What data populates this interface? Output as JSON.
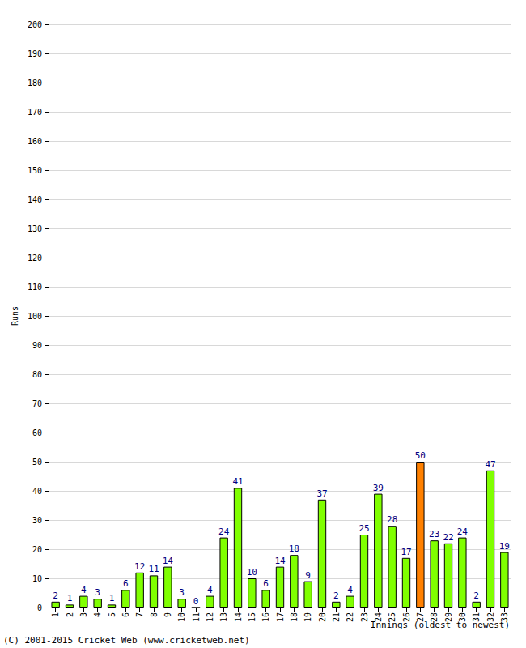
{
  "chart_data": {
    "type": "bar",
    "y_label": "Runs",
    "x_label": "Innings (oldest to newest)",
    "annotations": [
      "(C) 2001-2015 Cricket Web (www.cricketweb.net)"
    ],
    "categories": [
      "1",
      "2",
      "3",
      "4",
      "5",
      "6",
      "7",
      "8",
      "9",
      "10",
      "11",
      "12",
      "13",
      "14",
      "15",
      "16",
      "17",
      "18",
      "19",
      "20",
      "21",
      "22",
      "23",
      "24",
      "25",
      "26",
      "27",
      "28",
      "29",
      "30",
      "31",
      "32",
      "33"
    ],
    "values": [
      2,
      1,
      4,
      3,
      1,
      6,
      12,
      11,
      14,
      3,
      0,
      4,
      24,
      41,
      10,
      6,
      14,
      18,
      9,
      37,
      2,
      4,
      25,
      39,
      28,
      17,
      50,
      23,
      22,
      24,
      2,
      47,
      19
    ],
    "colors": [
      "#80ff00",
      "#80ff00",
      "#80ff00",
      "#80ff00",
      "#80ff00",
      "#80ff00",
      "#80ff00",
      "#80ff00",
      "#80ff00",
      "#80ff00",
      "#80ff00",
      "#80ff00",
      "#80ff00",
      "#80ff00",
      "#80ff00",
      "#80ff00",
      "#80ff00",
      "#80ff00",
      "#80ff00",
      "#80ff00",
      "#80ff00",
      "#80ff00",
      "#80ff00",
      "#80ff00",
      "#80ff00",
      "#80ff00",
      "#ff8000",
      "#80ff00",
      "#80ff00",
      "#80ff00",
      "#80ff00",
      "#80ff00",
      "#80ff00"
    ],
    "ylim": [
      0,
      200
    ],
    "yticks": [
      0,
      10,
      20,
      30,
      40,
      50,
      60,
      70,
      80,
      90,
      100,
      110,
      120,
      130,
      140,
      150,
      160,
      170,
      180,
      190,
      200
    ],
    "grid": true,
    "data_labels": true
  }
}
